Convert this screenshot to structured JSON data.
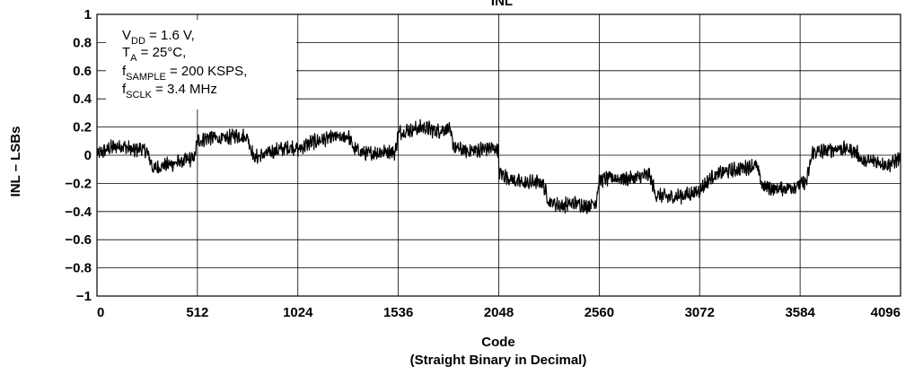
{
  "chart_data": {
    "type": "line",
    "title": "INL",
    "xlabel": "Code",
    "xlabel_sub": "(Straight Binary in Decimal)",
    "ylabel": "INL – LSBs",
    "xlim": [
      0,
      4096
    ],
    "ylim": [
      -1,
      1
    ],
    "grid": true,
    "x_ticks": [
      "0",
      "512",
      "1024",
      "1536",
      "2048",
      "2560",
      "3072",
      "3584",
      "4096"
    ],
    "y_ticks": [
      "1",
      "0.8",
      "0.6",
      "0.4",
      "0.2",
      "0",
      "−0.2",
      "−0.4",
      "−0.6",
      "−0.8",
      "−1"
    ],
    "annotation": {
      "vdd": {
        "main": "V",
        "sub": "DD",
        "rest": " = 1.6 V,"
      },
      "ta": {
        "main": "T",
        "sub": "A",
        "rest": " = 25°C,"
      },
      "fsample": {
        "main": "f",
        "sub": "SAMPLE",
        "rest": " = 200 KSPS,"
      },
      "fsclk": {
        "main": "f",
        "sub": "SCLK",
        "rest": " = 3.4 MHz"
      }
    },
    "series": [
      {
        "color": "#000000",
        "points": [
          [
            0,
            0.0
          ],
          [
            64,
            0.05
          ],
          [
            128,
            0.07
          ],
          [
            192,
            0.03
          ],
          [
            224,
            0.05
          ],
          [
            256,
            0.02
          ],
          [
            288,
            -0.1
          ],
          [
            320,
            -0.08
          ],
          [
            384,
            -0.06
          ],
          [
            448,
            -0.04
          ],
          [
            496,
            -0.02
          ],
          [
            512,
            0.1
          ],
          [
            576,
            0.13
          ],
          [
            640,
            0.11
          ],
          [
            704,
            0.14
          ],
          [
            768,
            0.13
          ],
          [
            800,
            -0.02
          ],
          [
            864,
            0.01
          ],
          [
            928,
            0.04
          ],
          [
            992,
            0.06
          ],
          [
            1024,
            0.04
          ],
          [
            1088,
            0.09
          ],
          [
            1152,
            0.11
          ],
          [
            1216,
            0.13
          ],
          [
            1248,
            0.12
          ],
          [
            1280,
            0.14
          ],
          [
            1312,
            0.04
          ],
          [
            1376,
            0.01
          ],
          [
            1440,
            0.02
          ],
          [
            1488,
            0.03
          ],
          [
            1520,
            0.02
          ],
          [
            1536,
            0.16
          ],
          [
            1600,
            0.18
          ],
          [
            1664,
            0.2
          ],
          [
            1728,
            0.17
          ],
          [
            1792,
            0.19
          ],
          [
            1824,
            0.05
          ],
          [
            1888,
            0.03
          ],
          [
            1952,
            0.04
          ],
          [
            2016,
            0.05
          ],
          [
            2047,
            0.04
          ],
          [
            2048,
            -0.12
          ],
          [
            2112,
            -0.17
          ],
          [
            2176,
            -0.2
          ],
          [
            2240,
            -0.19
          ],
          [
            2272,
            -0.2
          ],
          [
            2304,
            -0.33
          ],
          [
            2368,
            -0.36
          ],
          [
            2432,
            -0.34
          ],
          [
            2496,
            -0.36
          ],
          [
            2544,
            -0.33
          ],
          [
            2560,
            -0.18
          ],
          [
            2624,
            -0.16
          ],
          [
            2688,
            -0.17
          ],
          [
            2752,
            -0.16
          ],
          [
            2816,
            -0.14
          ],
          [
            2848,
            -0.28
          ],
          [
            2912,
            -0.3
          ],
          [
            2976,
            -0.29
          ],
          [
            3040,
            -0.27
          ],
          [
            3072,
            -0.25
          ],
          [
            3136,
            -0.15
          ],
          [
            3200,
            -0.12
          ],
          [
            3264,
            -0.1
          ],
          [
            3328,
            -0.08
          ],
          [
            3360,
            -0.07
          ],
          [
            3392,
            -0.22
          ],
          [
            3456,
            -0.24
          ],
          [
            3520,
            -0.23
          ],
          [
            3584,
            -0.21
          ],
          [
            3616,
            -0.19
          ],
          [
            3648,
            0.02
          ],
          [
            3712,
            0.03
          ],
          [
            3776,
            0.05
          ],
          [
            3840,
            0.04
          ],
          [
            3872,
            0.02
          ],
          [
            3904,
            -0.05
          ],
          [
            3968,
            -0.04
          ],
          [
            4032,
            -0.07
          ],
          [
            4095,
            -0.02
          ]
        ]
      }
    ]
  }
}
